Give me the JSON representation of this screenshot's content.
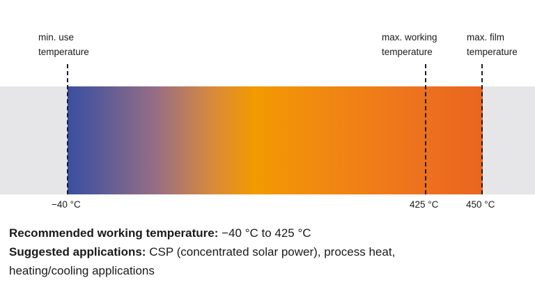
{
  "markers": {
    "min_use": {
      "label_line1": "min. use",
      "label_line2": "temperature",
      "value": "−40 °C"
    },
    "max_working": {
      "label_line1": "max. working",
      "label_line2": "temperature",
      "value": "425 °C"
    },
    "max_film": {
      "label_line1": "max. film",
      "label_line2": "temperature",
      "value": "450 °C"
    }
  },
  "info": {
    "recommended_label": "Recommended working temperature:",
    "recommended_value": " −40 °C to 425 °C",
    "applications_label": "Suggested applications:",
    "applications_value_line1": " CSP (concentrated solar power), process heat,",
    "applications_value_line2": "heating/cooling applications"
  },
  "colors": {
    "cold": "#3a4fa0",
    "mid": "#f29a00",
    "hot": "#e9651f",
    "background_band": "#e6e6e8"
  }
}
